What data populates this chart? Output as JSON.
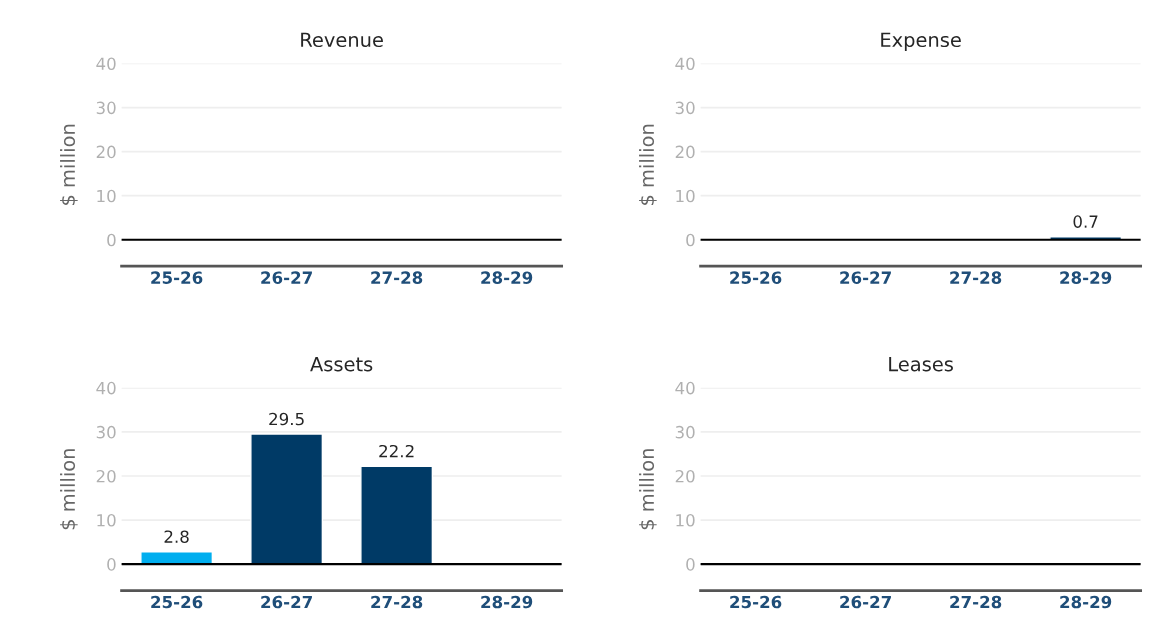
{
  "chart_data": [
    {
      "type": "bar",
      "title": "Revenue",
      "ylabel": "$ million",
      "categories": [
        "25-26",
        "26-27",
        "27-28",
        "28-29"
      ],
      "values": [
        null,
        null,
        null,
        null
      ],
      "color": "#003a66",
      "ylim": [
        -6,
        40
      ],
      "yticks": [
        0,
        10,
        20,
        30,
        40
      ],
      "grid": "y",
      "data_labels": true,
      "ref_lines": [
        {
          "axis": "y",
          "value": 0,
          "color": "#000000"
        }
      ]
    },
    {
      "type": "bar",
      "title": "Expense",
      "ylabel": "$ million",
      "categories": [
        "25-26",
        "26-27",
        "27-28",
        "28-29"
      ],
      "values": [
        null,
        null,
        null,
        0.7
      ],
      "color": "#003a66",
      "ylim": [
        -6,
        40
      ],
      "yticks": [
        0,
        10,
        20,
        30,
        40
      ],
      "grid": "y",
      "data_labels": true,
      "ref_lines": [
        {
          "axis": "y",
          "value": 0,
          "color": "#000000"
        }
      ]
    },
    {
      "type": "bar",
      "title": "Assets",
      "ylabel": "$ million",
      "categories": [
        "25-26",
        "26-27",
        "27-28",
        "28-29"
      ],
      "values": [
        2.8,
        29.5,
        22.2,
        null
      ],
      "colors": [
        "#00aeef",
        "#003a66",
        "#003a66",
        "#003a66"
      ],
      "ylim": [
        -6,
        40
      ],
      "yticks": [
        0,
        10,
        20,
        30,
        40
      ],
      "grid": "y",
      "data_labels": true,
      "ref_lines": [
        {
          "axis": "y",
          "value": 0,
          "color": "#000000"
        }
      ]
    },
    {
      "type": "bar",
      "title": "Leases",
      "ylabel": "$ million",
      "categories": [
        "25-26",
        "26-27",
        "27-28",
        "28-29"
      ],
      "values": [
        null,
        null,
        null,
        null
      ],
      "color": "#003a66",
      "ylim": [
        -6,
        40
      ],
      "yticks": [
        0,
        10,
        20,
        30,
        40
      ],
      "grid": "y",
      "data_labels": true,
      "ref_lines": [
        {
          "axis": "y",
          "value": 0,
          "color": "#000000"
        }
      ]
    }
  ]
}
